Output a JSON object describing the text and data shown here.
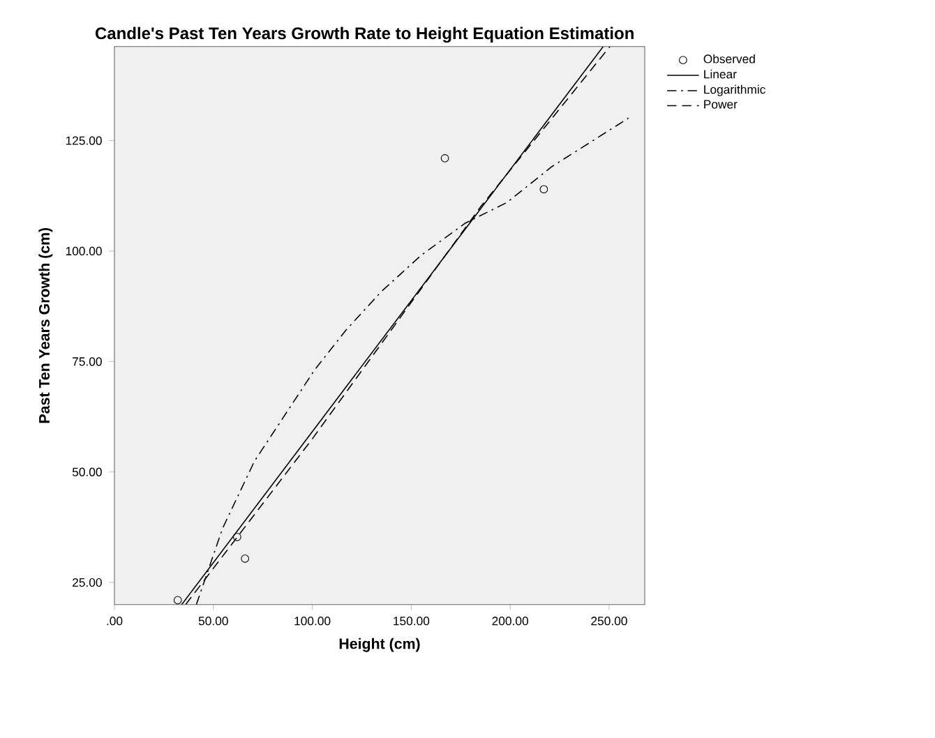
{
  "chart_data": {
    "type": "scatter",
    "title": "Candle's Past Ten Years Growth Rate to Height Equation Estimation",
    "xlabel": "Height (cm)",
    "ylabel": "Past Ten Years Growth (cm)",
    "xlim": [
      0,
      268
    ],
    "ylim": [
      20,
      146.3
    ],
    "xticks": [
      {
        "value": 0,
        "label": ".00"
      },
      {
        "value": 50,
        "label": "50.00"
      },
      {
        "value": 100,
        "label": "100.00"
      },
      {
        "value": 150,
        "label": "150.00"
      },
      {
        "value": 200,
        "label": "200.00"
      },
      {
        "value": 250,
        "label": "250.00"
      }
    ],
    "yticks": [
      {
        "value": 25,
        "label": "25.00"
      },
      {
        "value": 50,
        "label": "50.00"
      },
      {
        "value": 75,
        "label": "75.00"
      },
      {
        "value": 100,
        "label": "100.00"
      },
      {
        "value": 125,
        "label": "125.00"
      }
    ],
    "grid": false,
    "legend": "top right",
    "series": [
      {
        "name": "Observed",
        "color": "#000000",
        "marker": "circle",
        "x": [
          32,
          62,
          66,
          167,
          217
        ],
        "values": [
          21,
          35.3,
          30.4,
          121,
          114
        ]
      },
      {
        "name": "Linear",
        "type": "line",
        "color": "#000000",
        "line_style": "solid",
        "x": [
          34,
          247
        ],
        "values": [
          20,
          146.3
        ]
      },
      {
        "name": "Logarithmic",
        "type": "line",
        "color": "#000000",
        "line_style": "dashdot",
        "x": [
          41.4,
          54.7,
          70.7,
          101,
          117,
          134.8,
          154.9,
          177.2,
          198.4,
          221,
          259.8
        ],
        "values": [
          20,
          37.3,
          52.4,
          73,
          82.1,
          90.8,
          99,
          106.3,
          111,
          119.1,
          130.1
        ]
      },
      {
        "name": "Power",
        "type": "line",
        "color": "#000000",
        "line_style": "dashed",
        "x": [
          36,
          100,
          185,
          250.4
        ],
        "values": [
          20,
          57.5,
          110,
          146.3
        ]
      }
    ]
  }
}
